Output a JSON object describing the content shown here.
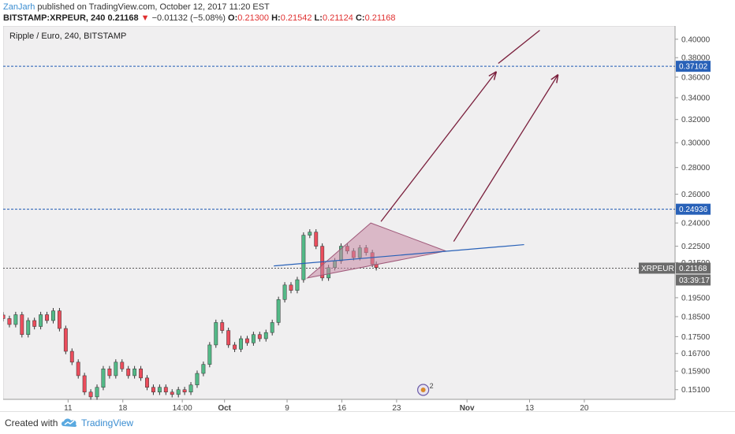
{
  "header": {
    "author": "ZanJarh",
    "published": "published on TradingView.com, October 12, 2017 11:20 EST",
    "symbol": "BITSTAMP:XRPEUR, 240",
    "last": "0.21168",
    "change": "−0.01132 (−5.08%)",
    "o_label": "O:",
    "o": "0.21300",
    "h_label": "H:",
    "h": "0.21542",
    "l_label": "L:",
    "l": "0.21124",
    "c_label": "C:",
    "c": "0.21168",
    "down_icon": "triangle-down-icon"
  },
  "footer": {
    "created": "Created with",
    "brand": "TradingView",
    "logo_icon": "tradingview-cloud-icon"
  },
  "colors": {
    "background": "#f0eff0",
    "up": "#53b987",
    "down": "#eb4d5c",
    "level_line": "#1e5ab4",
    "price_label": "#2861b8",
    "current_label": "#6b6b6b",
    "arrow": "#7a1f3c",
    "triangle_fill": "#c98aa6",
    "trendline": "#2861b8"
  },
  "chart_data": {
    "type": "candlestick",
    "title": "Ripple / Euro, 240, BITSTAMP",
    "y_scale": "log",
    "ylim": [
      0.147,
      0.415
    ],
    "y_ticks": [
      "0.40000",
      "0.38000",
      "0.36000",
      "0.34000",
      "0.32000",
      "0.30000",
      "0.28000",
      "0.26000",
      "0.24000",
      "0.22500",
      "0.21500",
      "0.19500",
      "0.18500",
      "0.17500",
      "0.16700",
      "0.15900",
      "0.15100"
    ],
    "x_ticks": [
      "11",
      "18",
      "14:00",
      "Oct",
      "9",
      "16",
      "23",
      "Nov",
      "13",
      "20"
    ],
    "x_tick_days": [
      11,
      18,
      25.6,
      31,
      39,
      46,
      53,
      62,
      70,
      77
    ],
    "x_day_note": "days counted from Sep 1, 2017",
    "xlim": [
      2.7,
      88.6
    ],
    "price_levels": [
      {
        "label": "0.37102",
        "value": 0.37102
      },
      {
        "label": "0.24936",
        "value": 0.24936
      }
    ],
    "current": {
      "symbol": "XRPEUR",
      "value": 0.21168,
      "label": "0.21168",
      "countdown": "03:39:17"
    },
    "closes": [
      [
        2.7,
        0.184
      ],
      [
        3.5,
        0.181
      ],
      [
        4.3,
        0.186
      ],
      [
        5.1,
        0.176
      ],
      [
        5.9,
        0.183
      ],
      [
        6.7,
        0.18
      ],
      [
        7.5,
        0.186
      ],
      [
        8.3,
        0.183
      ],
      [
        9.1,
        0.188
      ],
      [
        9.9,
        0.179
      ],
      [
        10.7,
        0.168
      ],
      [
        11.5,
        0.163
      ],
      [
        12.3,
        0.157
      ],
      [
        13.1,
        0.15
      ],
      [
        13.9,
        0.148
      ],
      [
        14.7,
        0.152
      ],
      [
        15.5,
        0.16
      ],
      [
        16.3,
        0.157
      ],
      [
        17.1,
        0.163
      ],
      [
        17.9,
        0.16
      ],
      [
        18.7,
        0.157
      ],
      [
        19.5,
        0.16
      ],
      [
        20.3,
        0.156
      ],
      [
        21.1,
        0.152
      ],
      [
        21.9,
        0.15
      ],
      [
        22.7,
        0.152
      ],
      [
        23.5,
        0.15
      ],
      [
        24.3,
        0.149
      ],
      [
        25.1,
        0.151
      ],
      [
        25.9,
        0.15
      ],
      [
        26.7,
        0.153
      ],
      [
        27.5,
        0.158
      ],
      [
        28.3,
        0.162
      ],
      [
        29.1,
        0.171
      ],
      [
        29.9,
        0.182
      ],
      [
        30.7,
        0.178
      ],
      [
        31.5,
        0.171
      ],
      [
        32.3,
        0.169
      ],
      [
        33.1,
        0.174
      ],
      [
        33.9,
        0.172
      ],
      [
        34.7,
        0.176
      ],
      [
        35.5,
        0.174
      ],
      [
        36.3,
        0.177
      ],
      [
        37.1,
        0.182
      ],
      [
        37.9,
        0.194
      ],
      [
        38.7,
        0.202
      ],
      [
        39.5,
        0.199
      ],
      [
        40.3,
        0.205
      ],
      [
        41.1,
        0.232
      ],
      [
        41.9,
        0.234
      ],
      [
        42.7,
        0.225
      ],
      [
        43.5,
        0.206
      ],
      [
        44.3,
        0.212
      ],
      [
        45.1,
        0.216
      ],
      [
        45.9,
        0.225
      ],
      [
        46.7,
        0.222
      ],
      [
        47.5,
        0.218
      ],
      [
        48.3,
        0.224
      ],
      [
        49.1,
        0.221
      ],
      [
        49.9,
        0.214
      ],
      [
        50.4,
        0.212
      ]
    ],
    "annotations": {
      "triangle": {
        "points": [
          [
            41.6,
            0.206
          ],
          [
            49.7,
            0.24
          ],
          [
            59.3,
            0.222
          ]
        ],
        "fill": "#c98aa6"
      },
      "trendline": {
        "from": [
          37.3,
          0.213
        ],
        "to": [
          69.3,
          0.226
        ]
      },
      "arrows": [
        {
          "from": [
            51.0,
            0.241
          ],
          "to": [
            65.7,
            0.365
          ]
        },
        {
          "from": [
            60.3,
            0.228
          ],
          "to": [
            73.6,
            0.362
          ]
        },
        {
          "from": [
            66.0,
            0.374
          ],
          "to": [
            71.3,
            0.41
          ]
        }
      ],
      "event_badge": {
        "day": 56.4,
        "count": "2"
      }
    }
  }
}
